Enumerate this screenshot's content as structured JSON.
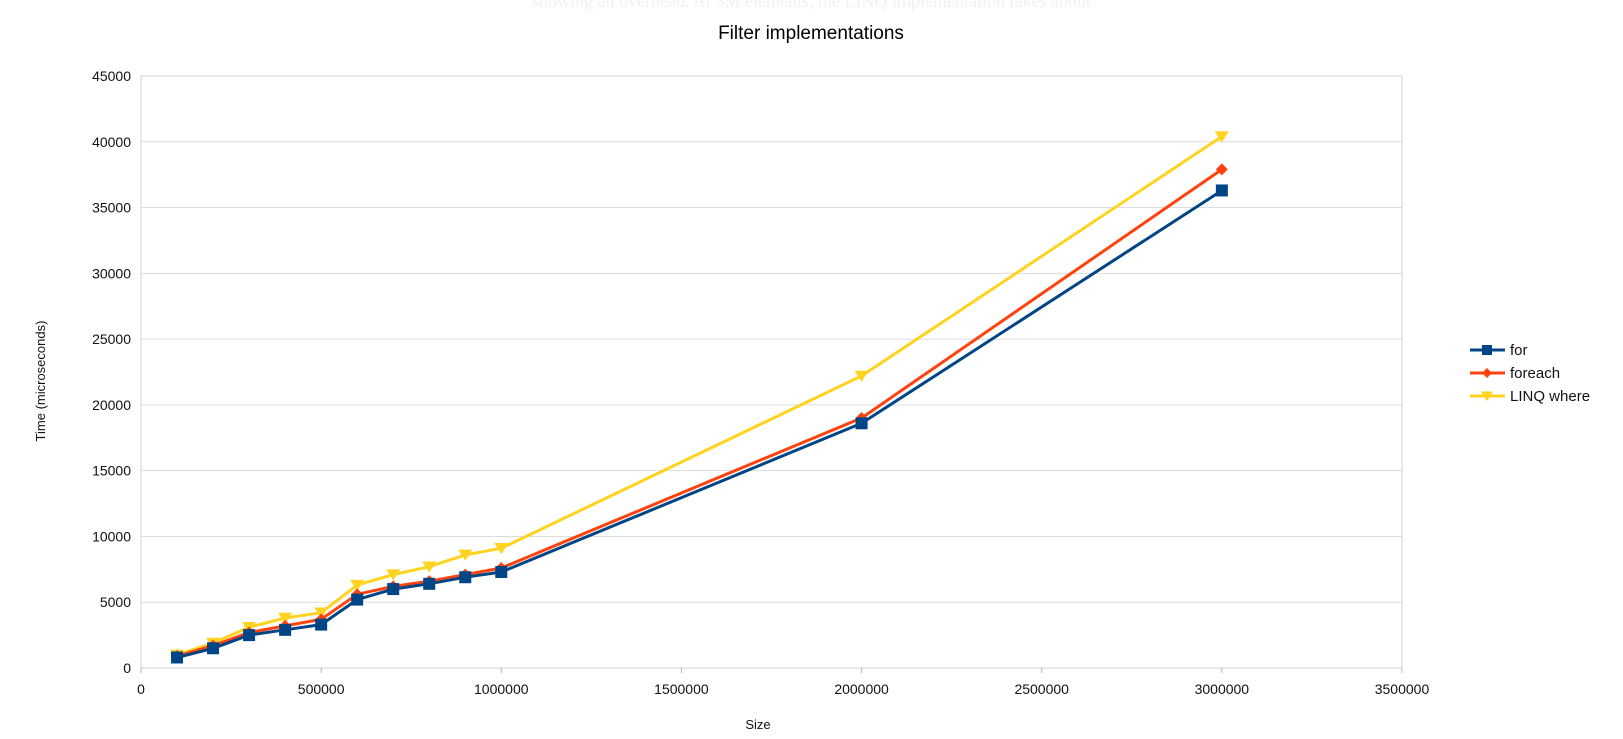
{
  "page": {
    "background_text": "showing an overhead. At 3M elements, the LINQ implementation takes about"
  },
  "chart_data": {
    "type": "line",
    "title": "Filter implementations",
    "xlabel": "Size",
    "ylabel": "Time (microseconds)",
    "xlim": [
      0,
      3500000
    ],
    "ylim": [
      0,
      45000
    ],
    "x_ticks": [
      0,
      500000,
      1000000,
      1500000,
      2000000,
      2500000,
      3000000,
      3500000
    ],
    "y_ticks": [
      0,
      5000,
      10000,
      15000,
      20000,
      25000,
      30000,
      35000,
      40000,
      45000
    ],
    "grid": "horizontal",
    "legend_position": "right",
    "x": [
      100000,
      200000,
      300000,
      400000,
      500000,
      600000,
      700000,
      800000,
      900000,
      1000000,
      2000000,
      3000000
    ],
    "series": [
      {
        "name": "for",
        "color": "#004586",
        "marker": "square",
        "values": [
          800,
          1500,
          2500,
          2900,
          3300,
          5200,
          6000,
          6400,
          6900,
          7300,
          18600,
          36300
        ]
      },
      {
        "name": "foreach",
        "color": "#ff420e",
        "marker": "diamond",
        "values": [
          900,
          1700,
          2700,
          3200,
          3700,
          5600,
          6200,
          6600,
          7100,
          7600,
          19000,
          37900
        ]
      },
      {
        "name": "LINQ where",
        "color": "#ffd320",
        "marker": "triangle-down",
        "values": [
          1000,
          1900,
          3100,
          3800,
          4200,
          6300,
          7100,
          7700,
          8600,
          9100,
          22200,
          40400
        ]
      }
    ]
  }
}
